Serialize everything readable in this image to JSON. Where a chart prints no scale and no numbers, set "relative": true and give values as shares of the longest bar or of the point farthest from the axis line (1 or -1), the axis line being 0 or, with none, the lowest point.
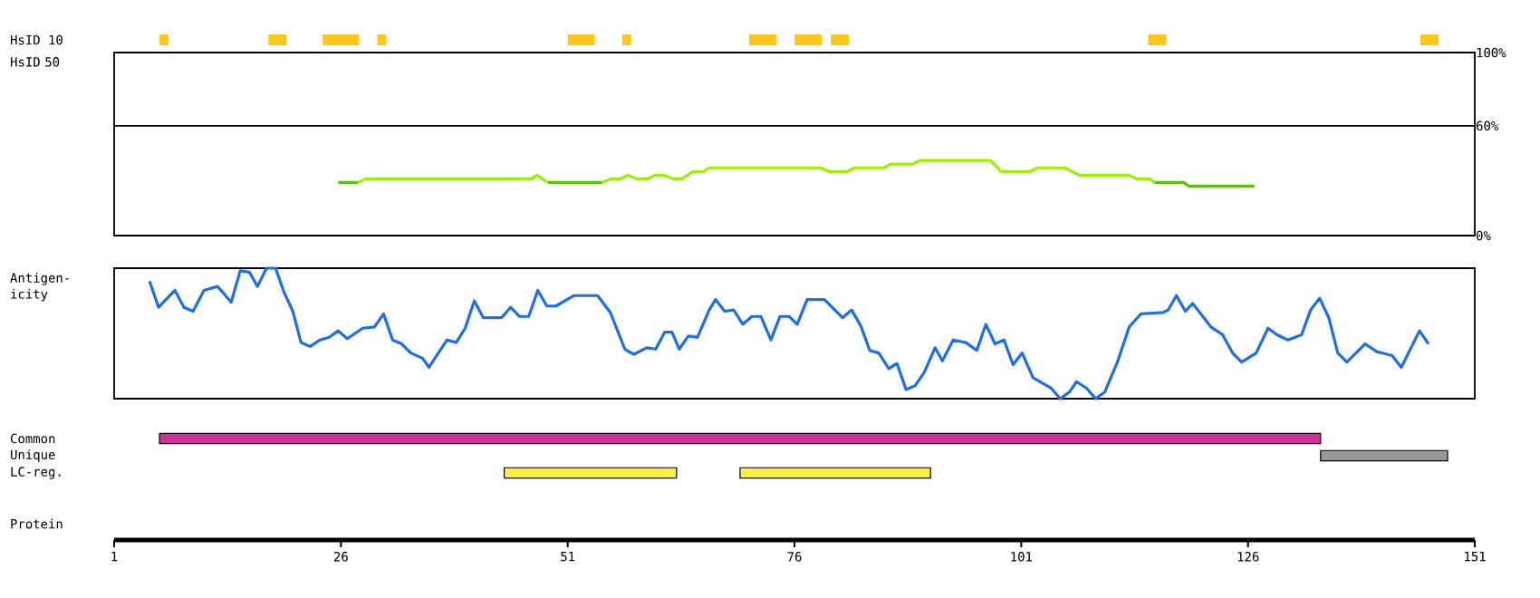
{
  "chart_data": [
    {
      "type": "bar",
      "orientation": "horizontal",
      "categories": [
        "HsID 10"
      ],
      "xlim": [
        1,
        151
      ],
      "tick_labels": "y",
      "series": [
        {
          "color": "#ffc61a",
          "base": [
            6
          ],
          "values": [
            1
          ]
        },
        {
          "color": "#ffc61a",
          "base": [
            18
          ],
          "values": [
            2
          ]
        },
        {
          "color": "#ffc61a",
          "base": [
            24
          ],
          "values": [
            4
          ]
        },
        {
          "color": "#ffc61a",
          "base": [
            30
          ],
          "values": [
            1
          ]
        },
        {
          "color": "#ffc61a",
          "base": [
            51
          ],
          "values": [
            3
          ]
        },
        {
          "color": "#ffc61a",
          "base": [
            57
          ],
          "values": [
            1
          ]
        },
        {
          "color": "#ffc61a",
          "base": [
            71
          ],
          "values": [
            3
          ]
        },
        {
          "color": "#ffc61a",
          "base": [
            76
          ],
          "values": [
            3
          ]
        },
        {
          "color": "#ffc61a",
          "base": [
            80
          ],
          "values": [
            2
          ]
        },
        {
          "color": "#ffc61a",
          "base": [
            115
          ],
          "values": [
            2
          ]
        },
        {
          "color": "#ffc61a",
          "base": [
            145
          ],
          "values": [
            2
          ]
        }
      ]
    },
    {
      "type": "line",
      "ylabel": "HsID 50",
      "xlim": [
        1,
        151
      ],
      "ylim": [
        0,
        100
      ],
      "yticks": [
        {
          "value": 0,
          "label": "0%"
        },
        {
          "value": 60,
          "label": "60%"
        },
        {
          "value": 100,
          "label": "100%"
        }
      ],
      "tick_labels": "y",
      "ref_lines": [
        {
          "axis": "y",
          "value": 60,
          "color": "#000000"
        }
      ],
      "series": [
        {
          "color": "#5cbf10",
          "x": [
            25.7,
            27.9,
            null,
            48.8,
            54.8,
            null,
            115.7,
            118.9,
            119.5,
            126.7
          ],
          "values": [
            29,
            29,
            null,
            29,
            29,
            null,
            29,
            29,
            27,
            27
          ]
        },
        {
          "color": "#99f000",
          "x": [
            27.9,
            28.7,
            47.0,
            47.6,
            48.8,
            null,
            54.8,
            55.8,
            56.8,
            57.6,
            58.6,
            59.8,
            60.6,
            61.6,
            62.6,
            63.6,
            64.8,
            66.0,
            66.6,
            78.9,
            79.8,
            81.8,
            82.6,
            85.8,
            86.6,
            89.0,
            89.8,
            97.6,
            98.8,
            102.0,
            102.8,
            105.8,
            107.4,
            112.9,
            113.7,
            115.2,
            115.7
          ],
          "values": [
            29,
            31,
            31,
            33,
            29,
            null,
            29,
            31,
            31,
            33,
            31,
            31,
            33,
            33,
            31,
            31,
            35,
            35,
            37,
            37,
            35,
            35,
            37,
            37,
            39,
            39,
            41,
            41,
            35,
            35,
            37,
            37,
            33,
            33,
            31,
            31,
            29
          ]
        }
      ]
    },
    {
      "type": "line",
      "relative": true,
      "ylabel": "Antigen-icity",
      "xlim": [
        1,
        151
      ],
      "tick_labels": false,
      "series": [
        {
          "color": "#1e6fe6",
          "x": [
            4.9,
            5.9,
            7.7,
            8.7,
            9.7,
            10.9,
            12.4,
            13.9,
            14.9,
            15.9,
            16.8,
            17.8,
            18.8,
            19.7,
            20.7,
            21.6,
            22.6,
            23.7,
            24.7,
            25.7,
            26.7,
            28.4,
            29.7,
            30.7,
            31.7,
            32.7,
            33.7,
            35.0,
            35.7,
            37.7,
            38.7,
            39.7,
            40.7,
            41.7,
            43.7,
            44.7,
            45.7,
            46.7,
            47.7,
            48.7,
            49.7,
            51.7,
            54.3,
            55.7,
            57.3,
            58.3,
            59.7,
            60.7,
            61.7,
            62.5,
            63.3,
            64.3,
            65.3,
            66.6,
            67.3,
            68.3,
            69.3,
            70.3,
            71.3,
            72.3,
            73.4,
            74.4,
            75.4,
            76.3,
            77.4,
            79.3,
            81.3,
            82.3,
            83.3,
            84.3,
            85.3,
            86.4,
            87.3,
            88.3,
            89.3,
            90.3,
            91.5,
            92.3,
            93.5,
            94.9,
            96.1,
            97.1,
            98.1,
            99.1,
            100.1,
            101.1,
            102.3,
            103.3,
            104.3,
            105.3,
            106.3,
            107.1,
            108.2,
            109.2,
            110.2,
            111.6,
            112.9,
            114.2,
            116.6,
            117.2,
            118.1,
            119.1,
            119.9,
            120.9,
            121.9,
            123.2,
            124.3,
            125.3,
            126.9,
            128.2,
            129.2,
            130.4,
            131.9,
            132.9,
            133.9,
            134.9,
            135.9,
            136.9,
            138.9,
            140.2,
            141.9,
            142.9,
            144.9,
            145.9
          ],
          "values": [
            0.9,
            0.7,
            0.83,
            0.7,
            0.67,
            0.83,
            0.86,
            0.74,
            0.98,
            0.97,
            0.86,
            1.0,
            1.0,
            0.82,
            0.67,
            0.43,
            0.4,
            0.45,
            0.47,
            0.52,
            0.46,
            0.54,
            0.55,
            0.65,
            0.45,
            0.42,
            0.35,
            0.31,
            0.24,
            0.45,
            0.43,
            0.54,
            0.75,
            0.62,
            0.62,
            0.7,
            0.63,
            0.63,
            0.83,
            0.71,
            0.71,
            0.79,
            0.79,
            0.66,
            0.38,
            0.34,
            0.39,
            0.38,
            0.51,
            0.51,
            0.38,
            0.48,
            0.47,
            0.68,
            0.76,
            0.67,
            0.68,
            0.57,
            0.63,
            0.63,
            0.45,
            0.63,
            0.63,
            0.57,
            0.76,
            0.76,
            0.62,
            0.68,
            0.56,
            0.37,
            0.35,
            0.23,
            0.27,
            0.07,
            0.1,
            0.2,
            0.39,
            0.29,
            0.45,
            0.43,
            0.37,
            0.57,
            0.42,
            0.45,
            0.26,
            0.35,
            0.16,
            0.12,
            0.08,
            0.0,
            0.05,
            0.13,
            0.08,
            0.0,
            0.05,
            0.28,
            0.55,
            0.65,
            0.66,
            0.68,
            0.79,
            0.67,
            0.73,
            0.64,
            0.55,
            0.49,
            0.35,
            0.28,
            0.35,
            0.54,
            0.49,
            0.45,
            0.49,
            0.68,
            0.77,
            0.62,
            0.35,
            0.28,
            0.42,
            0.36,
            0.33,
            0.24,
            0.52,
            0.42
          ]
        }
      ]
    },
    {
      "type": "bar",
      "orientation": "horizontal",
      "categories": [
        "Common",
        "Unique",
        "LC-reg."
      ],
      "xlabel": "Protein",
      "xlim": [
        1,
        151
      ],
      "xticks": [
        1,
        26,
        51,
        76,
        101,
        126,
        151
      ],
      "series": [
        {
          "colors": [
            "#cc3399",
            "#999999",
            "#ffee44"
          ],
          "base": [
            6,
            134,
            44
          ],
          "values": [
            128,
            14,
            19
          ]
        },
        {
          "color": "#ffee44",
          "base": [
            null,
            null,
            70
          ],
          "values": [
            null,
            null,
            21
          ]
        }
      ]
    }
  ]
}
